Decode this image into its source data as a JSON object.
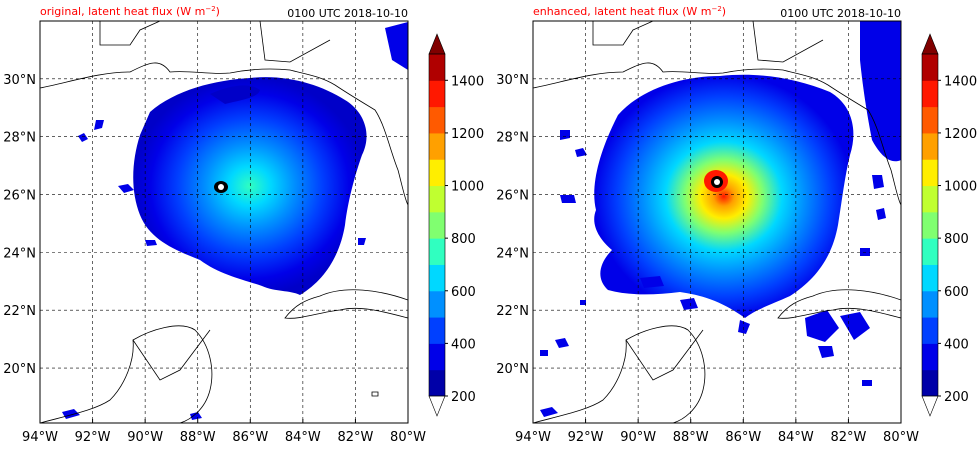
{
  "panels": [
    {
      "title_left": "original, latent heat flux (W m",
      "title_exp": "−2",
      "title_close": ")",
      "title_right": "0100 UTC 2018-10-10",
      "variant": "original"
    },
    {
      "title_left": "enhanced, latent heat flux (W m",
      "title_exp": "−2",
      "title_close": ")",
      "title_right": "0100 UTC 2018-10-10",
      "variant": "enhanced"
    }
  ],
  "x_ticks": [
    "94°W",
    "92°W",
    "90°W",
    "88°W",
    "86°W",
    "84°W",
    "82°W",
    "80°W"
  ],
  "y_ticks": [
    "20°N",
    "22°N",
    "24°N",
    "26°N",
    "28°N",
    "30°N"
  ],
  "extent": {
    "lon_min": -94,
    "lon_max": -80,
    "lat_min": 18.1,
    "lat_max": 32
  },
  "colorbar": {
    "ticks": [
      "200",
      "400",
      "600",
      "800",
      "1000",
      "1200",
      "1400"
    ],
    "levels": [
      200,
      300,
      400,
      500,
      600,
      700,
      800,
      900,
      1000,
      1100,
      1200,
      1300,
      1400,
      1500
    ],
    "colors": [
      "#0000a8",
      "#0000e8",
      "#0040ff",
      "#0090ff",
      "#00d8ff",
      "#30ffc0",
      "#80ff70",
      "#c0ff30",
      "#ffee00",
      "#ffa000",
      "#ff5a00",
      "#ff1800",
      "#b00000"
    ],
    "extend_high_color": "#800000",
    "extend_low_color": "#ffffff"
  },
  "colors": {
    "title": "#ff0000",
    "text": "#000000"
  }
}
